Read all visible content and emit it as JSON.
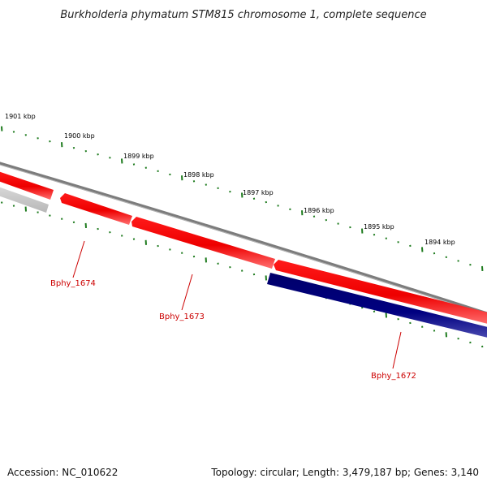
{
  "title": "Burkholderia phymatum STM815 chromosome 1, complete sequence",
  "accession": "Accession: NC_010622",
  "summary": "Topology: circular; Length: 3,479,187 bp; Genes: 3,140",
  "ticks": [
    {
      "label": "1901 kbp"
    },
    {
      "label": "1900 kbp"
    },
    {
      "label": "1899 kbp"
    },
    {
      "label": "1898 kbp"
    },
    {
      "label": "1897 kbp"
    },
    {
      "label": "1896 kbp"
    },
    {
      "label": "1895 kbp"
    },
    {
      "label": "1894 kbp"
    }
  ],
  "genes": [
    {
      "name": "Bphy_1674"
    },
    {
      "name": "Bphy_1673"
    },
    {
      "name": "Bphy_1672"
    }
  ],
  "colors": {
    "forward": "#ff0000",
    "reverse": "#000080",
    "backbone": "#808080",
    "ticks": "#1e7b1e",
    "gene_label": "#cc0000",
    "faded": "#cccccc"
  }
}
